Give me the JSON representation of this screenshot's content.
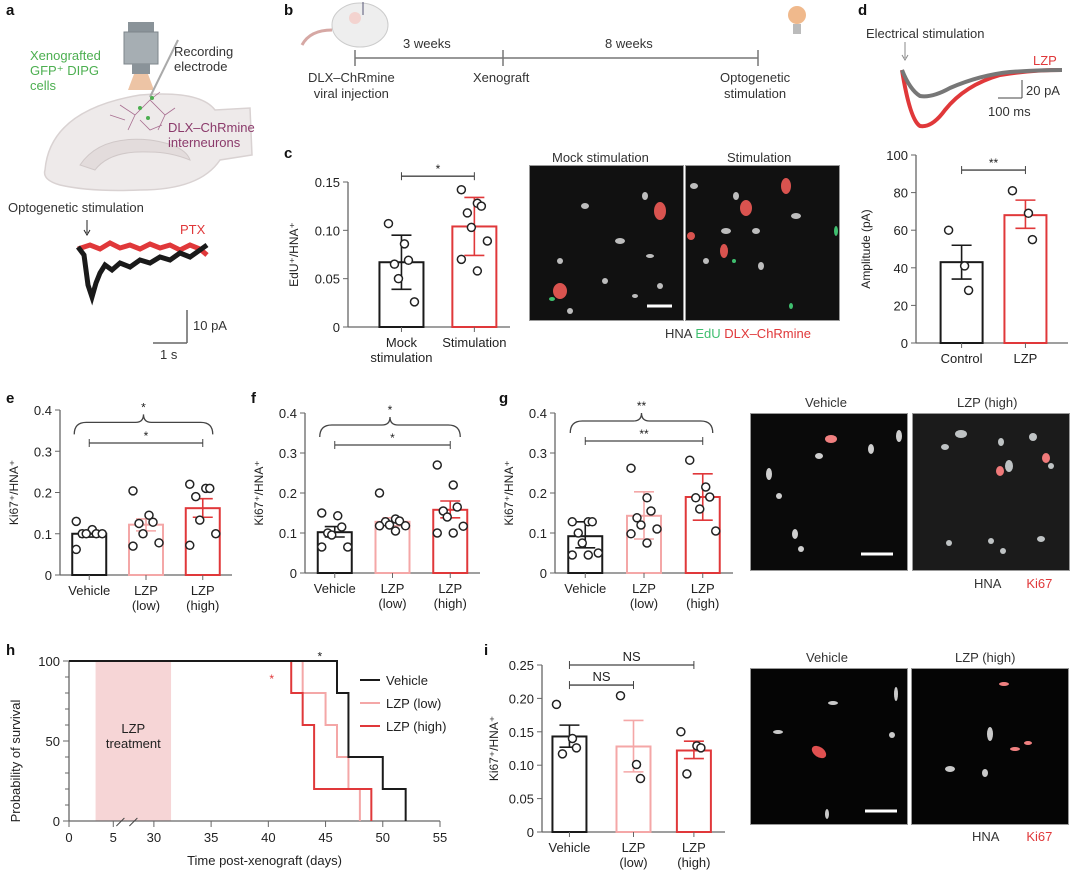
{
  "colors": {
    "black": "#1a1a1a",
    "red": "#e0383a",
    "pink": "#f4a7a7",
    "grey": "#7a7a7a",
    "green": "#4caf50",
    "purple": "#8b3a6b",
    "shade": "#f6d5d6"
  },
  "panel_labels": {
    "a": "a",
    "b": "b",
    "c": "c",
    "d": "d",
    "e": "e",
    "f": "f",
    "g": "g",
    "h": "h",
    "i": "i"
  },
  "panel_a": {
    "label_xeno": "Xenografted",
    "label_gfp": "GFP⁺ DIPG",
    "label_cells": "cells",
    "label_rec1": "Recording",
    "label_rec2": "electrode",
    "label_dlx1": "DLX–ChRmine",
    "label_dlx2": "interneurons",
    "trace_title": "Optogenetic stimulation",
    "trace_legend": "PTX",
    "scale_y": "10 pA",
    "scale_x": "1 s"
  },
  "panel_b": {
    "segment1": "3 weeks",
    "segment2": "8 weeks",
    "step1_line1": "DLX–ChRmine",
    "step1_line2": "viral injection",
    "step2": "Xenograft",
    "step3_line1": "Optogenetic",
    "step3_line2": "stimulation"
  },
  "panel_c_images": {
    "title_left": "Mock stimulation",
    "title_right": "Stimulation",
    "legend_hna": "HNA",
    "legend_edu": "EdU",
    "legend_dlx": "DLX–ChRmine"
  },
  "panel_d": {
    "trace_title": "Electrical stimulation",
    "trace_legend": "LZP",
    "scale_y": "20 pA",
    "scale_x": "100 ms"
  },
  "panel_g_images": {
    "title_left": "Vehicle",
    "title_right": "LZP (high)",
    "legend_hna": "HNA",
    "legend_ki67": "Ki67"
  },
  "panel_i_images": {
    "title_left": "Vehicle",
    "title_right": "LZP (high)",
    "legend_hna": "HNA",
    "legend_ki67": "Ki67"
  },
  "chart_data": [
    {
      "id": "c",
      "type": "bar",
      "ylabel": "EdU⁺/HNA⁺",
      "ylim": [
        0,
        0.15
      ],
      "yticks": [
        "0",
        "0.05",
        "0.10",
        "0.15"
      ],
      "yticks_v": [
        0,
        0.05,
        0.1,
        0.15
      ],
      "categories": [
        [
          "Mock",
          "stimulation"
        ],
        [
          "Stimulation"
        ]
      ],
      "series": [
        {
          "name": "Mock stimulation",
          "mean": 0.067,
          "err_low": 0.039,
          "err_high": 0.095,
          "color": "#1a1a1a",
          "points": [
            0.107,
            0.086,
            0.069,
            0.065,
            0.05,
            0.026
          ]
        },
        {
          "name": "Stimulation",
          "mean": 0.104,
          "err_low": 0.074,
          "err_high": 0.134,
          "color": "#e0383a",
          "points": [
            0.142,
            0.128,
            0.125,
            0.118,
            0.103,
            0.089,
            0.07,
            0.058
          ]
        }
      ],
      "significance": [
        {
          "from": 0,
          "to": 1,
          "label": "*",
          "level": 0.156
        }
      ]
    },
    {
      "id": "d",
      "type": "bar",
      "ylabel": "Amplitude (pA)",
      "ylim": [
        0,
        100
      ],
      "yticks": [
        "0",
        "20",
        "40",
        "60",
        "80",
        "100"
      ],
      "yticks_v": [
        0,
        20,
        40,
        60,
        80,
        100
      ],
      "categories": [
        [
          "Control"
        ],
        [
          "LZP"
        ]
      ],
      "series": [
        {
          "name": "Control",
          "mean": 43,
          "err_low": 34,
          "err_high": 52,
          "color": "#1a1a1a",
          "points": [
            60,
            41,
            28
          ]
        },
        {
          "name": "LZP",
          "mean": 68,
          "err_low": 61,
          "err_high": 76,
          "color": "#e0383a",
          "points": [
            81,
            69,
            55
          ]
        }
      ],
      "significance": [
        {
          "from": 0,
          "to": 1,
          "label": "**",
          "level": 92
        }
      ]
    },
    {
      "id": "e",
      "type": "bar",
      "ylabel": "Ki67⁺/HNA⁺",
      "ylim": [
        0,
        0.4
      ],
      "yticks": [
        "0",
        "0.1",
        "0.2",
        "0.3",
        "0.4"
      ],
      "yticks_v": [
        0,
        0.1,
        0.2,
        0.3,
        0.4
      ],
      "categories": [
        [
          "Vehicle"
        ],
        [
          "LZP",
          "(low)"
        ],
        [
          "LZP",
          "(high)"
        ]
      ],
      "series": [
        {
          "name": "Vehicle",
          "mean": 0.1,
          "err_low": 0.092,
          "err_high": 0.108,
          "color": "#1a1a1a",
          "points": [
            0.13,
            0.11,
            0.1,
            0.1,
            0.1,
            0.1,
            0.062
          ]
        },
        {
          "name": "LZP (low)",
          "mean": 0.122,
          "err_low": 0.107,
          "err_high": 0.136,
          "color": "#f4a7a7",
          "points": [
            0.204,
            0.145,
            0.128,
            0.125,
            0.1,
            0.078,
            0.07
          ]
        },
        {
          "name": "LZP (high)",
          "mean": 0.162,
          "err_low": 0.14,
          "err_high": 0.185,
          "color": "#e0383a",
          "points": [
            0.22,
            0.21,
            0.21,
            0.19,
            0.133,
            0.1,
            0.072
          ]
        }
      ],
      "significance": [
        {
          "from": 0,
          "to": 2,
          "label": "*",
          "level": 0.32
        }
      ],
      "brace": {
        "from": 0,
        "to": 2,
        "label": "*",
        "level": 0.37
      }
    },
    {
      "id": "f",
      "type": "bar",
      "ylabel": "Ki67⁺/HNA⁺",
      "ylim": [
        0,
        0.4
      ],
      "yticks": [
        "0",
        "0.1",
        "0.2",
        "0.3",
        "0.4"
      ],
      "yticks_v": [
        0,
        0.1,
        0.2,
        0.3,
        0.4
      ],
      "categories": [
        [
          "Vehicle"
        ],
        [
          "LZP",
          "(low)"
        ],
        [
          "LZP",
          "(high)"
        ]
      ],
      "series": [
        {
          "name": "Vehicle",
          "mean": 0.102,
          "err_low": 0.09,
          "err_high": 0.116,
          "color": "#1a1a1a",
          "points": [
            0.15,
            0.143,
            0.115,
            0.1,
            0.095,
            0.065,
            0.065
          ]
        },
        {
          "name": "LZP (low)",
          "mean": 0.128,
          "err_low": 0.118,
          "err_high": 0.138,
          "color": "#f4a7a7",
          "points": [
            0.2,
            0.135,
            0.13,
            0.128,
            0.12,
            0.118,
            0.118,
            0.105
          ]
        },
        {
          "name": "LZP (high)",
          "mean": 0.158,
          "err_low": 0.138,
          "err_high": 0.18,
          "color": "#e0383a",
          "points": [
            0.27,
            0.22,
            0.165,
            0.155,
            0.14,
            0.117,
            0.1,
            0.1
          ]
        }
      ],
      "significance": [
        {
          "from": 0,
          "to": 2,
          "label": "*",
          "level": 0.32
        }
      ],
      "brace": {
        "from": 0,
        "to": 2,
        "label": "*",
        "level": 0.37
      }
    },
    {
      "id": "g",
      "type": "bar",
      "ylabel": "Ki67⁺/HNA⁺",
      "ylim": [
        0,
        0.4
      ],
      "yticks": [
        "0",
        "0.1",
        "0.2",
        "0.3",
        "0.4"
      ],
      "yticks_v": [
        0,
        0.1,
        0.2,
        0.3,
        0.4
      ],
      "categories": [
        [
          "Vehicle"
        ],
        [
          "LZP",
          "(low)"
        ],
        [
          "LZP",
          "(high)"
        ]
      ],
      "series": [
        {
          "name": "Vehicle",
          "mean": 0.092,
          "err_low": 0.063,
          "err_high": 0.128,
          "color": "#1a1a1a",
          "points": [
            0.128,
            0.128,
            0.128,
            0.1,
            0.075,
            0.05,
            0.045,
            0.045
          ]
        },
        {
          "name": "LZP (low)",
          "mean": 0.143,
          "err_low": 0.085,
          "err_high": 0.203,
          "color": "#f4a7a7",
          "points": [
            0.262,
            0.188,
            0.155,
            0.138,
            0.12,
            0.11,
            0.098,
            0.075
          ]
        },
        {
          "name": "LZP (high)",
          "mean": 0.19,
          "err_low": 0.132,
          "err_high": 0.248,
          "color": "#e0383a",
          "points": [
            0.282,
            0.215,
            0.19,
            0.188,
            0.16,
            0.105
          ]
        }
      ],
      "significance": [
        {
          "from": 0,
          "to": 2,
          "label": "**",
          "level": 0.33
        }
      ],
      "brace": {
        "from": 0,
        "to": 2,
        "label": "**",
        "level": 0.38
      }
    },
    {
      "id": "h",
      "type": "line",
      "xlabel": "Time post-xenograft (days)",
      "ylabel": "Probability of survival",
      "ylim": [
        0,
        100
      ],
      "yticks": [
        "0",
        "50",
        "100"
      ],
      "yticks_v": [
        0,
        50,
        100
      ],
      "xticks": [
        "0",
        "5",
        "30",
        "35",
        "40",
        "45",
        "50",
        "55"
      ],
      "xticks_v": [
        0,
        5,
        30,
        35,
        40,
        45,
        50,
        55
      ],
      "axis_break": [
        7,
        28
      ],
      "shaded_region": {
        "from": 3,
        "to": 31.5,
        "label_line1": "LZP",
        "label_line2": "treatment"
      },
      "annotations": [
        {
          "x": 44.5,
          "y": 104,
          "label": "*",
          "color": "#1a1a1a"
        },
        {
          "x": 40.3,
          "y": 90,
          "label": "*",
          "color": "#e0383a"
        }
      ],
      "legend_position": "right",
      "series": [
        {
          "name": "Vehicle",
          "color": "#1a1a1a",
          "steps": [
            [
              0,
              100
            ],
            [
              46,
              100
            ],
            [
              46,
              80
            ],
            [
              47,
              80
            ],
            [
              47,
              40
            ],
            [
              50,
              40
            ],
            [
              50,
              20
            ],
            [
              52,
              20
            ],
            [
              52,
              0
            ]
          ]
        },
        {
          "name": "LZP (low)",
          "color": "#f4a7a7",
          "steps": [
            [
              0,
              100
            ],
            [
              43,
              100
            ],
            [
              43,
              80
            ],
            [
              45,
              80
            ],
            [
              45,
              60
            ],
            [
              46,
              60
            ],
            [
              46,
              40
            ],
            [
              47,
              40
            ],
            [
              47,
              20
            ],
            [
              48,
              20
            ],
            [
              48,
              0
            ]
          ]
        },
        {
          "name": "LZP (high)",
          "color": "#e0383a",
          "steps": [
            [
              0,
              100
            ],
            [
              42,
              100
            ],
            [
              42,
              80
            ],
            [
              43,
              80
            ],
            [
              43,
              60
            ],
            [
              44,
              60
            ],
            [
              44,
              20
            ],
            [
              49,
              20
            ],
            [
              49,
              0
            ]
          ]
        }
      ]
    },
    {
      "id": "i",
      "type": "bar",
      "ylabel": "Ki67⁺/HNA⁺",
      "ylim": [
        0,
        0.25
      ],
      "yticks": [
        "0",
        "0.05",
        "0.10",
        "0.15",
        "0.20",
        "0.25"
      ],
      "yticks_v": [
        0,
        0.05,
        0.1,
        0.15,
        0.2,
        0.25
      ],
      "categories": [
        [
          "Vehicle"
        ],
        [
          "LZP",
          "(low)"
        ],
        [
          "LZP",
          "(high)"
        ]
      ],
      "series": [
        {
          "name": "Vehicle",
          "mean": 0.143,
          "err_low": 0.127,
          "err_high": 0.16,
          "color": "#1a1a1a",
          "points": [
            0.191,
            0.14,
            0.126,
            0.117
          ]
        },
        {
          "name": "LZP (low)",
          "mean": 0.128,
          "err_low": 0.09,
          "err_high": 0.167,
          "color": "#f4a7a7",
          "points": [
            0.204,
            0.101,
            0.08
          ]
        },
        {
          "name": "LZP (high)",
          "mean": 0.122,
          "err_low": 0.11,
          "err_high": 0.136,
          "color": "#e0383a",
          "points": [
            0.15,
            0.129,
            0.126,
            0.087
          ]
        }
      ],
      "significance": [
        {
          "from": 0,
          "to": 2,
          "label": "NS",
          "level": 0.25
        },
        {
          "from": 0,
          "to": 1,
          "label": "NS",
          "level": 0.22
        }
      ]
    }
  ]
}
